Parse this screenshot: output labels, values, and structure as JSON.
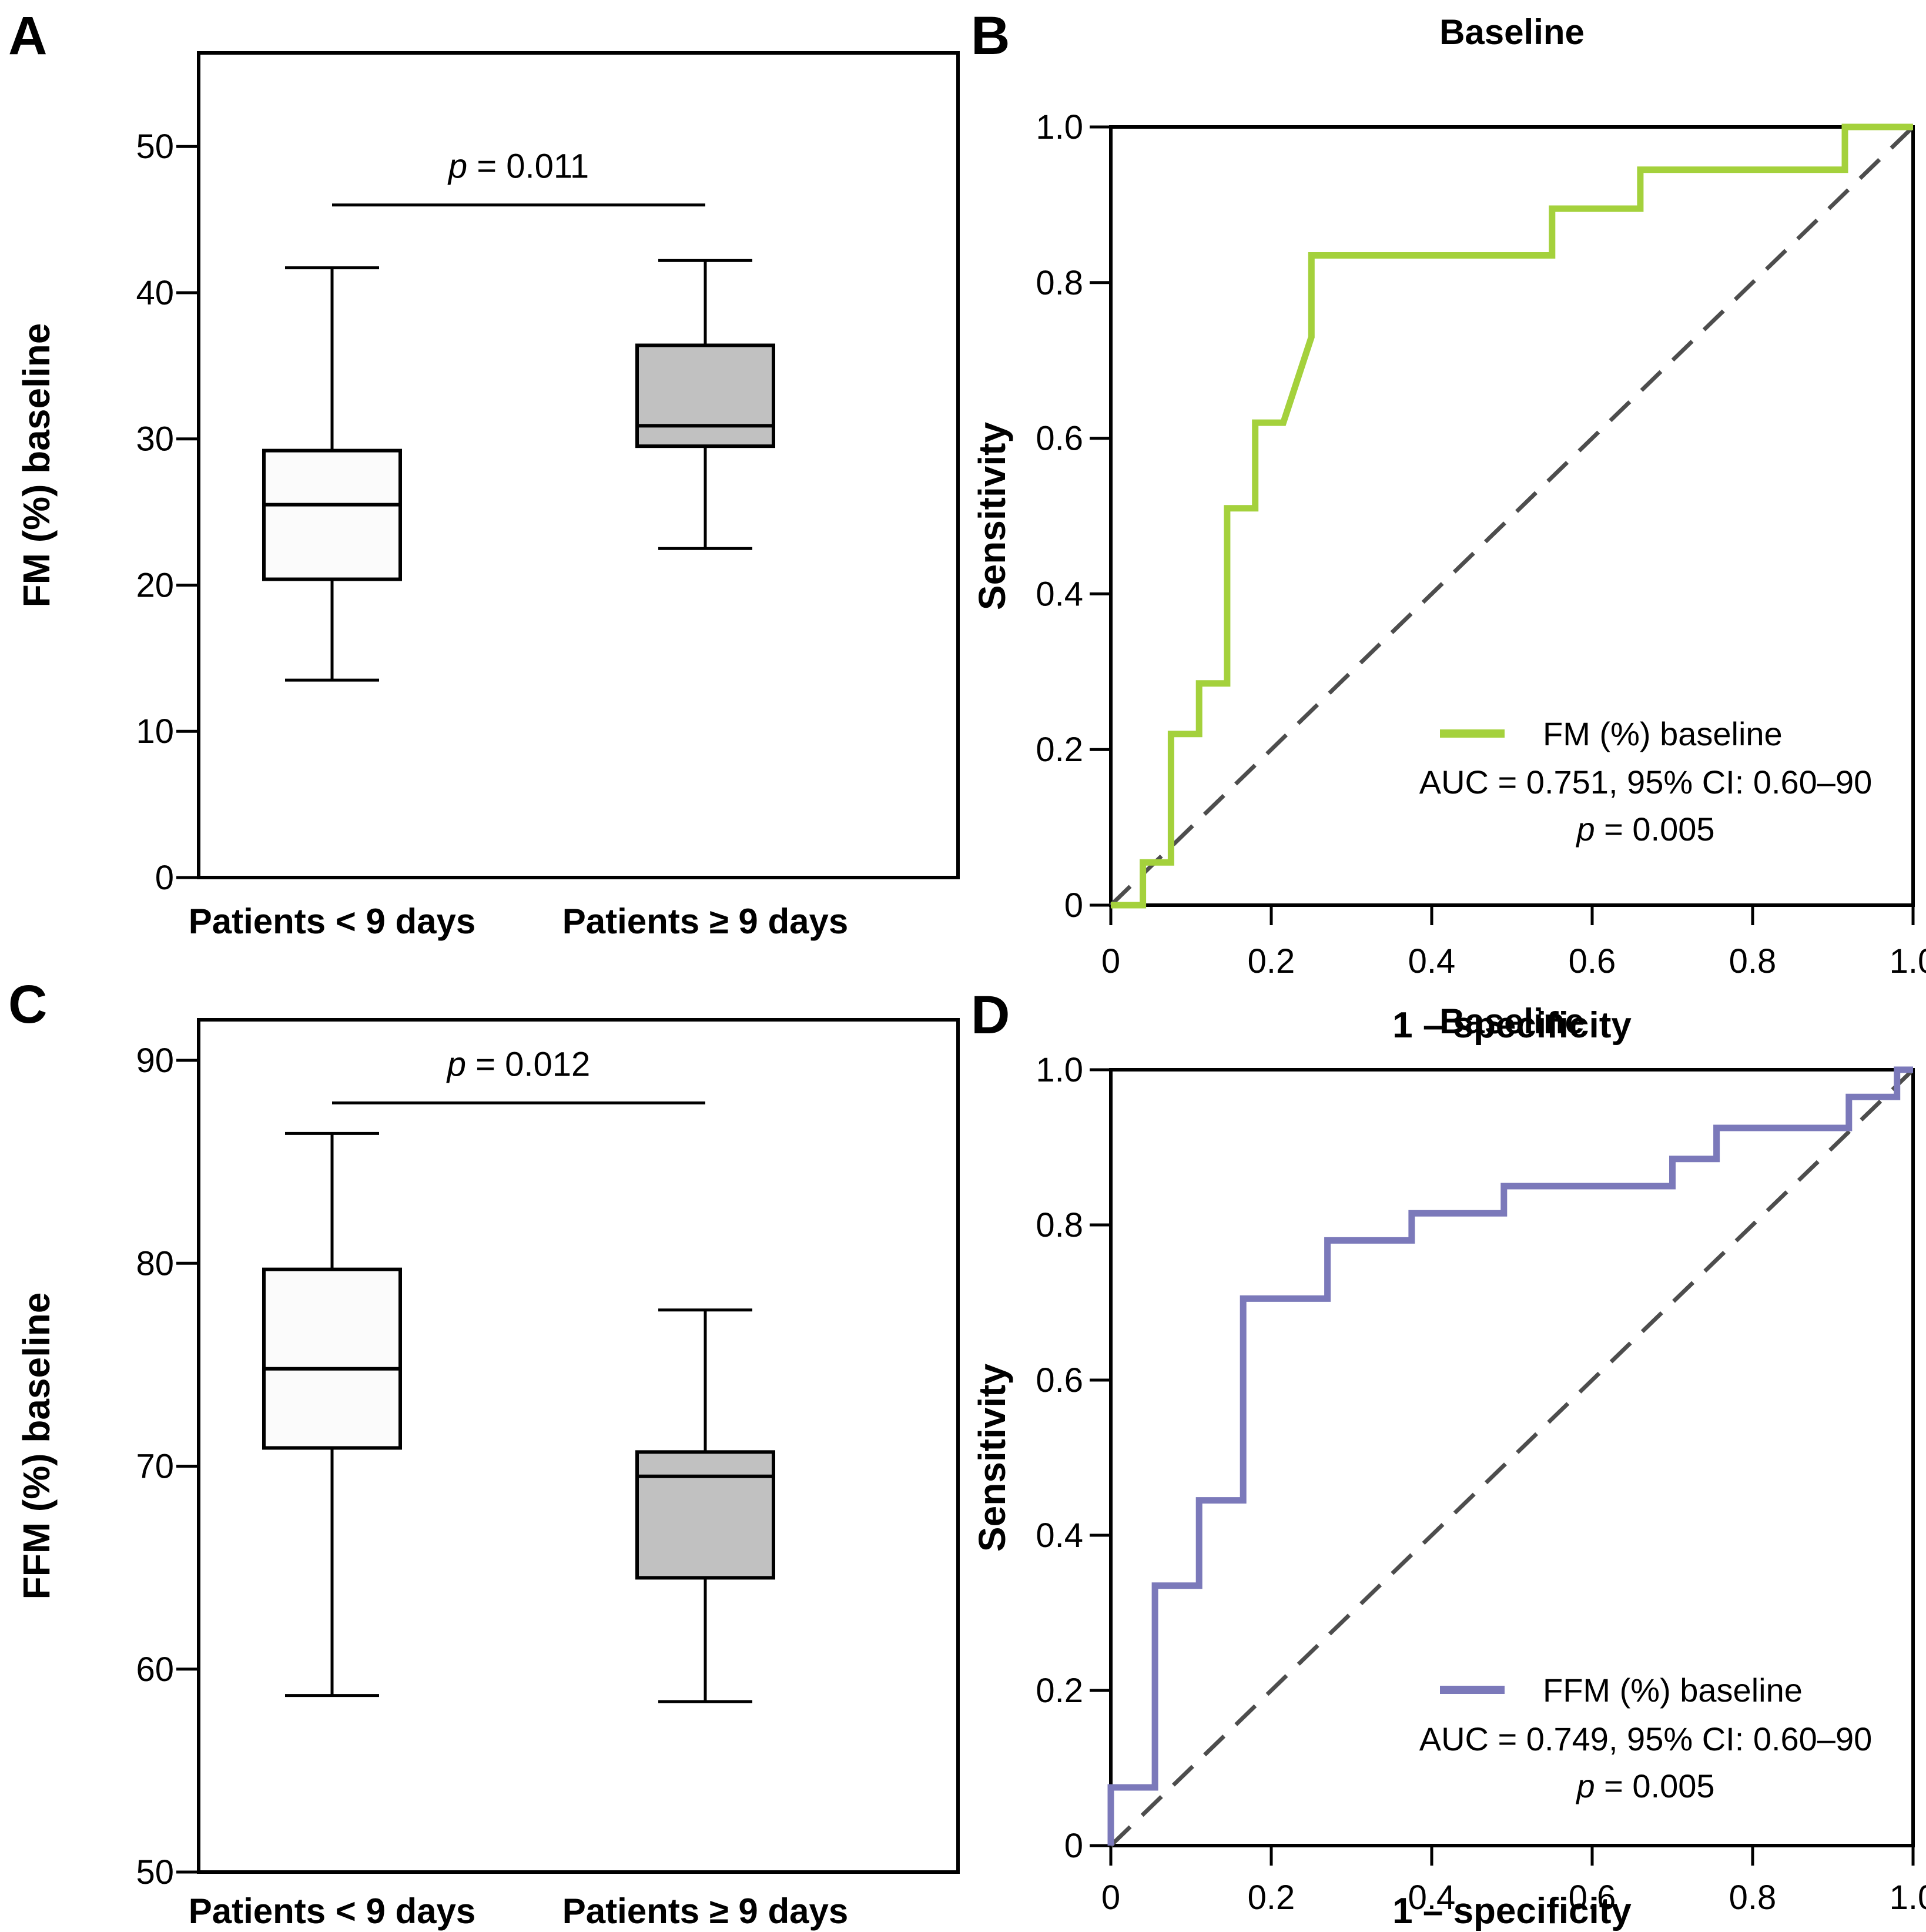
{
  "figure": {
    "background": "#ffffff",
    "panel_letters": [
      "A",
      "B",
      "C",
      "D"
    ]
  },
  "chart_data": [
    {
      "type": "box",
      "panel": "A",
      "title": "",
      "xlabel": "",
      "ylabel": "FM (%) baseline",
      "ylim": [
        0,
        56.4
      ],
      "yticks": [
        0,
        10,
        20,
        30,
        40,
        50
      ],
      "grid": false,
      "categories": [
        "Patients < 9 days",
        "Patients ≥ 9 days"
      ],
      "significance": {
        "label": "p = 0.011",
        "bracket_y": 46
      },
      "series": [
        {
          "name": "Patients < 9 days",
          "whisker_low": 13.5,
          "q1": 20.4,
          "median": 25.5,
          "q3": 29.2,
          "whisker_high": 41.7,
          "fill": "#fbfbfb"
        },
        {
          "name": "Patients ≥ 9 days",
          "whisker_low": 22.5,
          "q1": 29.5,
          "median": 30.9,
          "q3": 36.4,
          "whisker_high": 42.2,
          "fill": "#c1c1c1"
        }
      ],
      "box_edge_color": "#000000"
    },
    {
      "type": "line",
      "subtype": "roc",
      "panel": "B",
      "title": "Baseline",
      "xlabel": "1 – specificity",
      "ylabel": "Sensitivity",
      "xlim": [
        0,
        1
      ],
      "ylim": [
        0,
        1
      ],
      "xticks": [
        0,
        0.2,
        0.4,
        0.6,
        0.8,
        1
      ],
      "yticks": [
        0,
        0.2,
        0.4,
        0.6,
        0.8,
        1
      ],
      "grid": false,
      "line_color": "#a4d13c",
      "reference_diagonal": {
        "style": "dashed",
        "color": "#4d4d4d"
      },
      "legend_position": "lower-right",
      "legend": {
        "label": "FM (%) baseline",
        "auc_line": "AUC = 0.751, 95% CI: 0.60–90",
        "p_line": "p = 0.005"
      },
      "series": [
        {
          "name": "FM (%) baseline",
          "points": [
            [
              0,
              0
            ],
            [
              0.04,
              0
            ],
            [
              0.04,
              0.055
            ],
            [
              0.075,
              0.055
            ],
            [
              0.075,
              0.22
            ],
            [
              0.11,
              0.22
            ],
            [
              0.11,
              0.285
            ],
            [
              0.145,
              0.285
            ],
            [
              0.145,
              0.51
            ],
            [
              0.18,
              0.51
            ],
            [
              0.18,
              0.62
            ],
            [
              0.215,
              0.62
            ],
            [
              0.25,
              0.73
            ],
            [
              0.25,
              0.835
            ],
            [
              0.55,
              0.835
            ],
            [
              0.55,
              0.895
            ],
            [
              0.66,
              0.895
            ],
            [
              0.66,
              0.945
            ],
            [
              0.915,
              0.945
            ],
            [
              0.915,
              1
            ],
            [
              1,
              1
            ]
          ]
        }
      ]
    },
    {
      "type": "box",
      "panel": "C",
      "title": "",
      "xlabel": "",
      "ylabel": "FFM (%) baseline",
      "ylim": [
        50,
        92
      ],
      "yticks": [
        50,
        60,
        70,
        80,
        90
      ],
      "grid": false,
      "categories": [
        "Patients < 9 days",
        "Patients ≥ 9 days"
      ],
      "significance": {
        "label": "p = 0.012",
        "bracket_y": 87.9
      },
      "series": [
        {
          "name": "Patients < 9 days",
          "whisker_low": 58.7,
          "q1": 70.9,
          "median": 74.8,
          "q3": 79.7,
          "whisker_high": 86.4,
          "fill": "#fbfbfb"
        },
        {
          "name": "Patients ≥ 9 days",
          "whisker_low": 58.4,
          "q1": 64.5,
          "median": 69.5,
          "q3": 70.7,
          "whisker_high": 77.7,
          "fill": "#c1c1c1"
        }
      ],
      "box_edge_color": "#000000"
    },
    {
      "type": "line",
      "subtype": "roc",
      "panel": "D",
      "title": "Baseline",
      "xlabel": "1 – specificity",
      "ylabel": "Sensitivity",
      "xlim": [
        0,
        1
      ],
      "ylim": [
        0,
        1
      ],
      "xticks": [
        0,
        0.2,
        0.4,
        0.6,
        0.8,
        1
      ],
      "yticks": [
        0,
        0.2,
        0.4,
        0.6,
        0.8,
        1
      ],
      "grid": false,
      "line_color": "#7b79ba",
      "reference_diagonal": {
        "style": "dashed",
        "color": "#4d4d4d"
      },
      "legend_position": "lower-right",
      "legend": {
        "label": "FFM (%) baseline",
        "auc_line": "AUC = 0.749, 95% CI: 0.60–90",
        "p_line": "p = 0.005"
      },
      "series": [
        {
          "name": "FFM (%) baseline",
          "points": [
            [
              0,
              0
            ],
            [
              0,
              0.075
            ],
            [
              0.055,
              0.075
            ],
            [
              0.055,
              0.335
            ],
            [
              0.11,
              0.335
            ],
            [
              0.11,
              0.445
            ],
            [
              0.165,
              0.445
            ],
            [
              0.165,
              0.705
            ],
            [
              0.27,
              0.705
            ],
            [
              0.27,
              0.78
            ],
            [
              0.375,
              0.78
            ],
            [
              0.375,
              0.815
            ],
            [
              0.49,
              0.815
            ],
            [
              0.49,
              0.85
            ],
            [
              0.7,
              0.85
            ],
            [
              0.7,
              0.885
            ],
            [
              0.755,
              0.885
            ],
            [
              0.755,
              0.925
            ],
            [
              0.92,
              0.925
            ],
            [
              0.92,
              0.965
            ],
            [
              0.98,
              0.965
            ],
            [
              0.98,
              1
            ],
            [
              1,
              1
            ]
          ]
        }
      ]
    }
  ]
}
